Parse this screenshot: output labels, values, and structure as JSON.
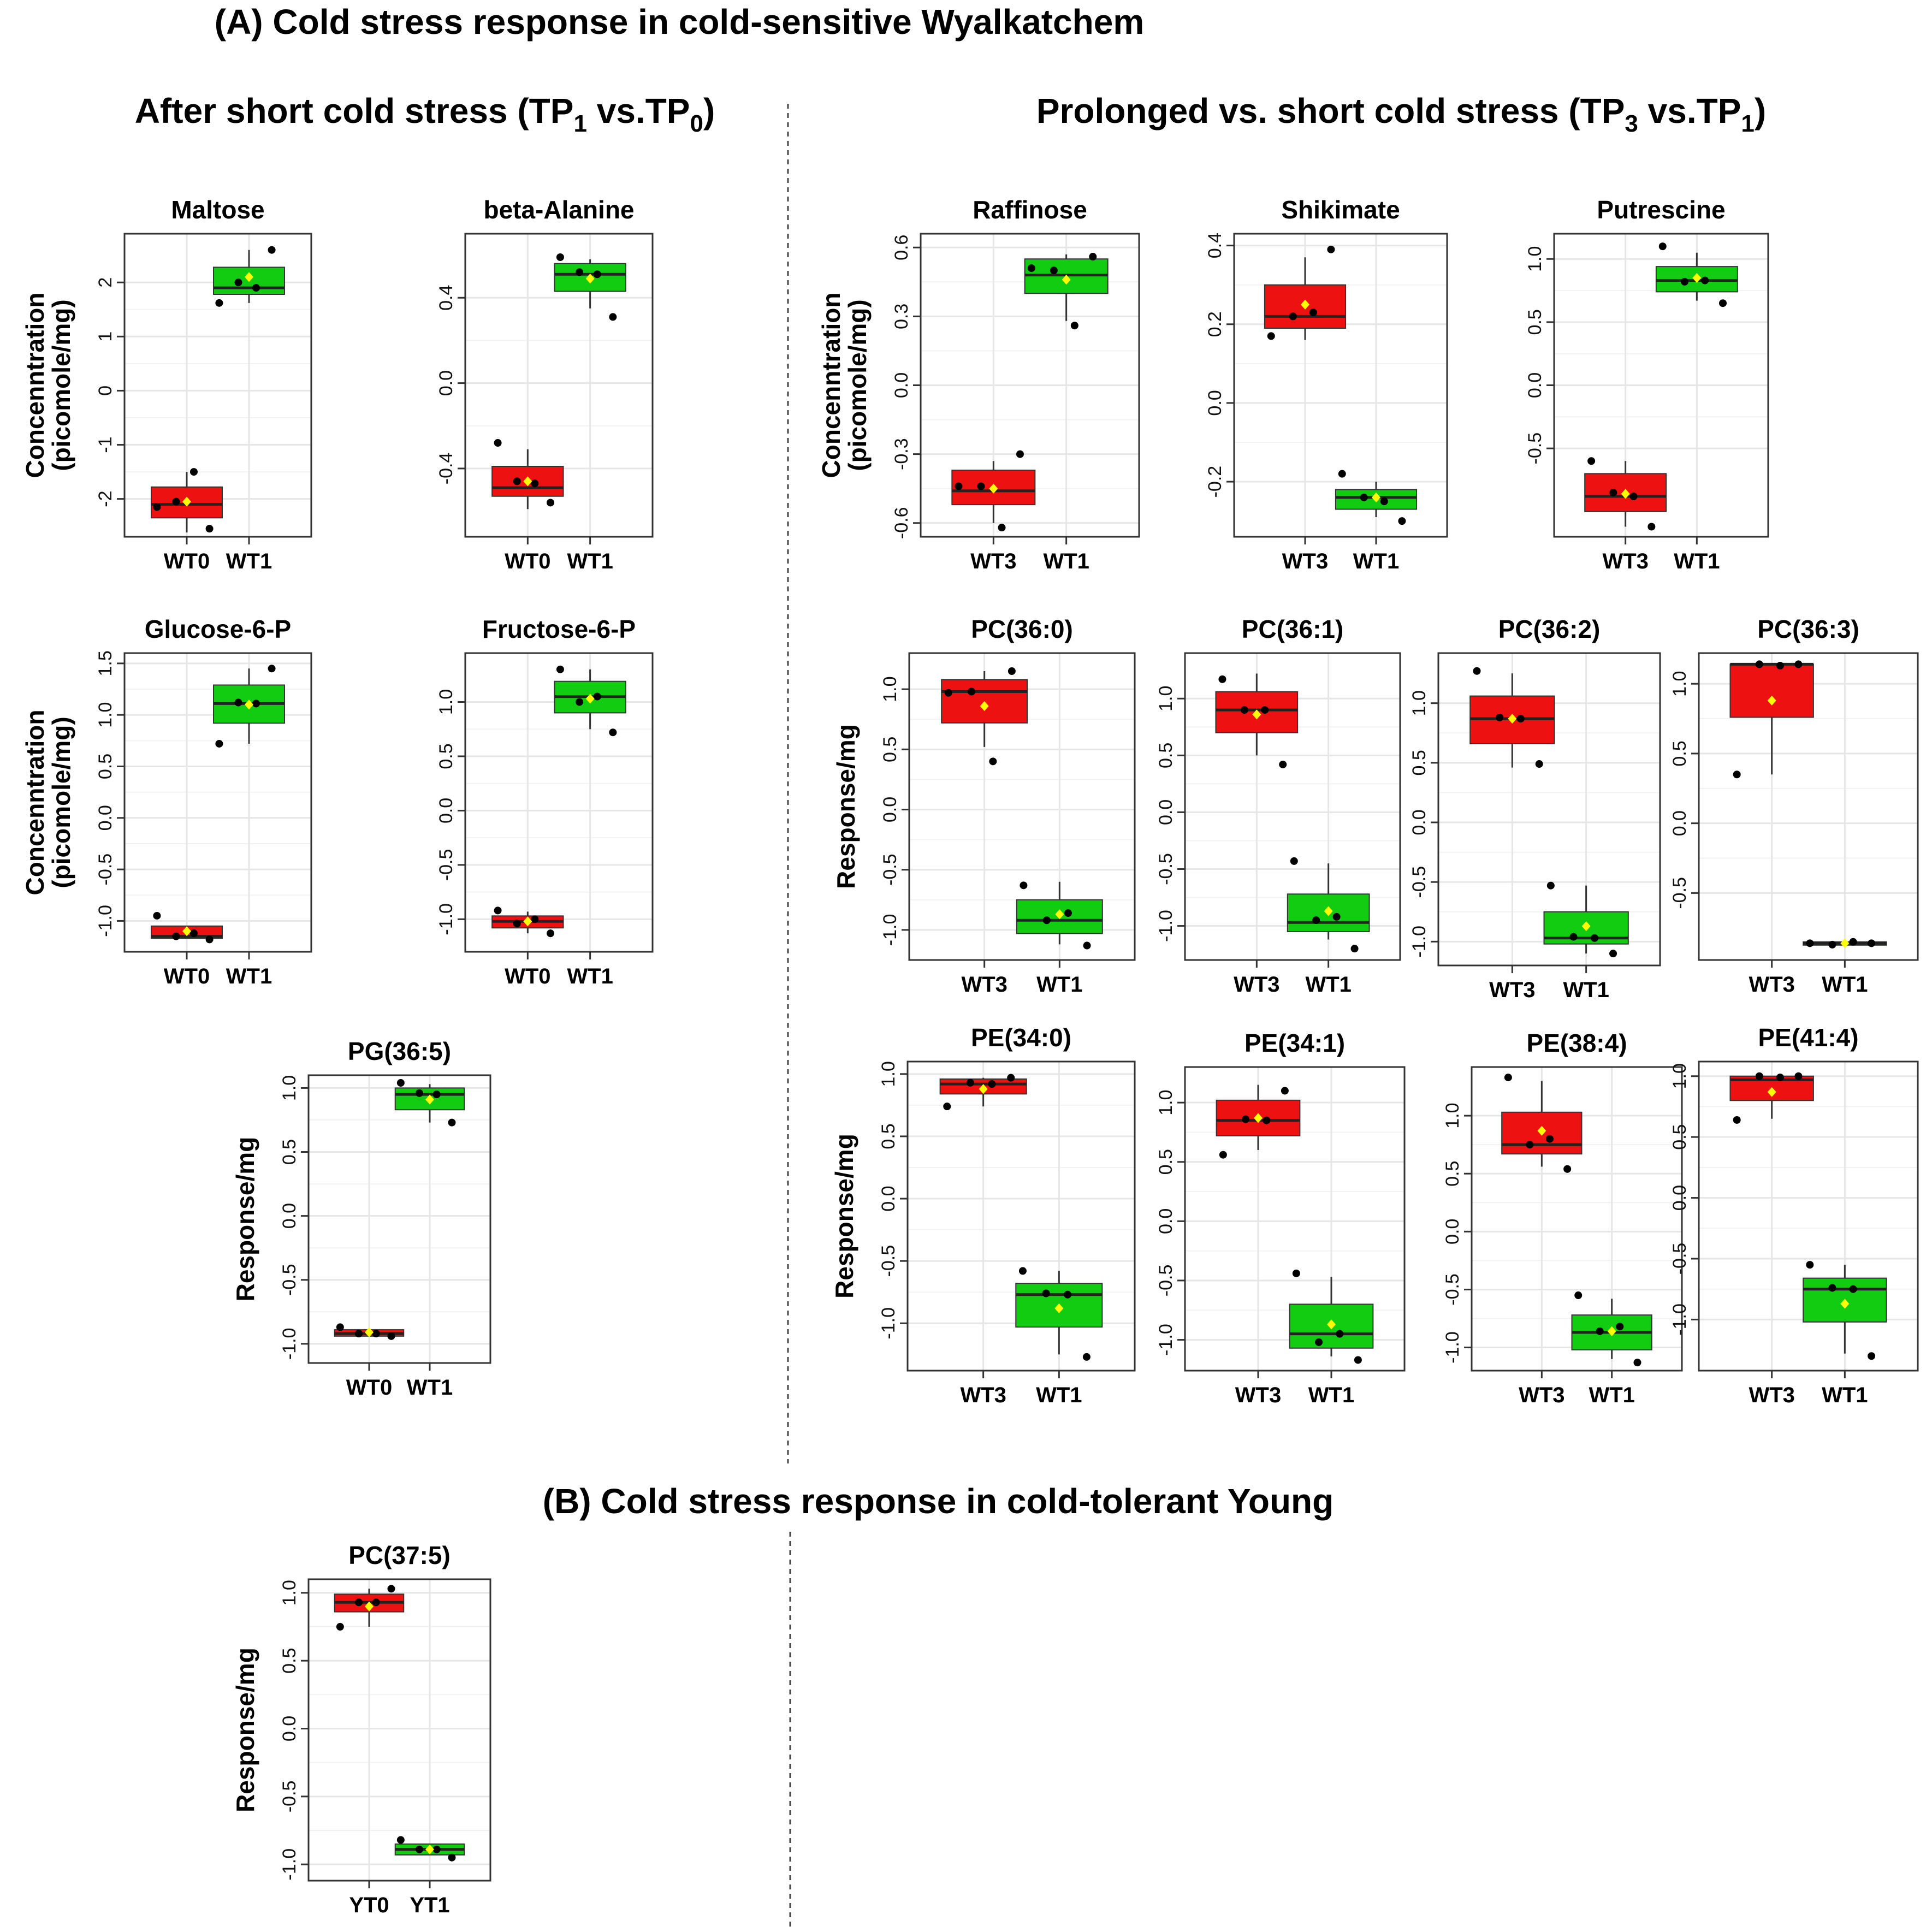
{
  "figure": {
    "title_a": "(A) Cold stress response in cold-sensitive Wyalkatchem",
    "title_b": "(B) Cold stress response in cold-tolerant Young",
    "subtitle_left_main": "After short cold stress (TP",
    "subtitle_left_sub1": "1",
    "subtitle_left_mid": " vs.TP",
    "subtitle_left_sub2": "0",
    "subtitle_left_end": ")",
    "subtitle_right_main": "Prolonged vs. short cold stress (TP",
    "subtitle_right_sub1": "3",
    "subtitle_right_mid": " vs.TP",
    "subtitle_right_sub2": "1",
    "subtitle_right_end": ")",
    "colors": {
      "red": "#ee1111",
      "green": "#11cc11",
      "mean": "#ffff00",
      "grid": "#e6e6e6"
    }
  },
  "chart_data": [
    {
      "type": "box",
      "title": "Maltose",
      "ylabel": [
        "Concenntration",
        "(picomole/mg)"
      ],
      "ylim": [
        -2.7,
        2.9
      ],
      "yticks": [
        -2,
        -1,
        0,
        1,
        2
      ],
      "categories": [
        "WT0",
        "WT1"
      ],
      "boxes": [
        {
          "q1": -2.35,
          "median": -2.1,
          "q3": -1.78,
          "wlo": -2.62,
          "whi": -1.5,
          "mean": -2.05,
          "color": "red",
          "points": [
            -2.15,
            -2.55,
            -1.5,
            -2.05
          ]
        },
        {
          "q1": 1.78,
          "median": 1.9,
          "q3": 2.28,
          "wlo": 1.62,
          "whi": 2.6,
          "mean": 2.1,
          "color": "green",
          "points": [
            1.62,
            2.6,
            1.9,
            2.0
          ]
        }
      ]
    },
    {
      "type": "box",
      "title": "beta-Alanine",
      "ylabel": [],
      "ylim": [
        -0.72,
        0.7
      ],
      "yticks": [
        -0.4,
        0,
        0.4
      ],
      "categories": [
        "WT0",
        "WT1"
      ],
      "boxes": [
        {
          "q1": -0.53,
          "median": -0.49,
          "q3": -0.39,
          "wlo": -0.59,
          "whi": -0.31,
          "mean": -0.46,
          "color": "red",
          "points": [
            -0.28,
            -0.56,
            -0.47,
            -0.46
          ]
        },
        {
          "q1": 0.43,
          "median": 0.51,
          "q3": 0.56,
          "wlo": 0.35,
          "whi": 0.58,
          "mean": 0.49,
          "color": "green",
          "points": [
            0.59,
            0.31,
            0.51,
            0.52
          ]
        }
      ]
    },
    {
      "type": "box",
      "title": "Raffinose",
      "ylabel": [
        "Concenntration",
        "(picomole/mg)"
      ],
      "ylim": [
        -0.66,
        0.66
      ],
      "yticks": [
        -0.6,
        -0.3,
        0,
        0.3,
        0.6
      ],
      "categories": [
        "WT3",
        "WT1"
      ],
      "boxes": [
        {
          "q1": -0.52,
          "median": -0.46,
          "q3": -0.37,
          "wlo": -0.6,
          "whi": -0.33,
          "mean": -0.45,
          "color": "red",
          "points": [
            -0.44,
            -0.3,
            -0.62,
            -0.44
          ]
        },
        {
          "q1": 0.4,
          "median": 0.48,
          "q3": 0.55,
          "wlo": 0.28,
          "whi": 0.57,
          "mean": 0.46,
          "color": "green",
          "points": [
            0.51,
            0.56,
            0.26,
            0.5
          ]
        }
      ]
    },
    {
      "type": "box",
      "title": "Shikimate",
      "ylabel": [],
      "ylim": [
        -0.34,
        0.43
      ],
      "yticks": [
        -0.2,
        0,
        0.2,
        0.4
      ],
      "categories": [
        "WT3",
        "WT1"
      ],
      "boxes": [
        {
          "q1": 0.19,
          "median": 0.22,
          "q3": 0.3,
          "wlo": 0.16,
          "whi": 0.37,
          "mean": 0.25,
          "color": "red",
          "points": [
            0.17,
            0.39,
            0.23,
            0.22
          ]
        },
        {
          "q1": -0.27,
          "median": -0.24,
          "q3": -0.22,
          "wlo": -0.29,
          "whi": -0.2,
          "mean": -0.24,
          "color": "green",
          "points": [
            -0.18,
            -0.3,
            -0.25,
            -0.24
          ]
        }
      ]
    },
    {
      "type": "box",
      "title": "Putrescine",
      "ylabel": [],
      "ylim": [
        -1.2,
        1.2
      ],
      "yticks": [
        -0.5,
        0,
        0.5,
        1.0
      ],
      "categories": [
        "WT3",
        "WT1"
      ],
      "boxes": [
        {
          "q1": -1.0,
          "median": -0.88,
          "q3": -0.7,
          "wlo": -1.12,
          "whi": -0.6,
          "mean": -0.86,
          "color": "red",
          "points": [
            -0.6,
            -1.12,
            -0.88,
            -0.85
          ]
        },
        {
          "q1": 0.74,
          "median": 0.83,
          "q3": 0.94,
          "wlo": 0.67,
          "whi": 1.05,
          "mean": 0.85,
          "color": "green",
          "points": [
            1.1,
            0.65,
            0.83,
            0.82
          ]
        }
      ]
    },
    {
      "type": "box",
      "title": "Glucose-6-P",
      "ylabel": [
        "Concenntration",
        "(picomole/mg)"
      ],
      "ylim": [
        -1.3,
        1.6
      ],
      "yticks": [
        -1.0,
        -0.5,
        0,
        0.5,
        1.0,
        1.5
      ],
      "categories": [
        "WT0",
        "WT1"
      ],
      "boxes": [
        {
          "q1": -1.17,
          "median": -1.15,
          "q3": -1.05,
          "wlo": -1.17,
          "whi": -1.05,
          "mean": -1.1,
          "color": "red",
          "points": [
            -0.95,
            -1.18,
            -1.12,
            -1.15
          ]
        },
        {
          "q1": 0.92,
          "median": 1.11,
          "q3": 1.29,
          "wlo": 0.72,
          "whi": 1.45,
          "mean": 1.1,
          "color": "green",
          "points": [
            0.72,
            1.45,
            1.11,
            1.12
          ]
        }
      ]
    },
    {
      "type": "box",
      "title": "Fructose-6-P",
      "ylabel": [],
      "ylim": [
        -1.3,
        1.45
      ],
      "yticks": [
        -1.0,
        -0.5,
        0,
        0.5,
        1.0
      ],
      "categories": [
        "WT0",
        "WT1"
      ],
      "boxes": [
        {
          "q1": -1.08,
          "median": -1.02,
          "q3": -0.97,
          "wlo": -1.13,
          "whi": -0.93,
          "mean": -1.02,
          "color": "red",
          "points": [
            -0.92,
            -1.13,
            -1.0,
            -1.04
          ]
        },
        {
          "q1": 0.9,
          "median": 1.05,
          "q3": 1.19,
          "wlo": 0.75,
          "whi": 1.3,
          "mean": 1.03,
          "color": "green",
          "points": [
            1.3,
            0.72,
            1.05,
            1.0
          ]
        }
      ]
    },
    {
      "type": "box",
      "title": "PC(36:0)",
      "ylabel": [
        "Response/mg"
      ],
      "ylim": [
        -1.25,
        1.3
      ],
      "yticks": [
        -1.0,
        -0.5,
        0,
        0.5,
        1.0
      ],
      "categories": [
        "WT3",
        "WT1"
      ],
      "boxes": [
        {
          "q1": 0.72,
          "median": 0.98,
          "q3": 1.08,
          "wlo": 0.52,
          "whi": 1.15,
          "mean": 0.86,
          "color": "red",
          "points": [
            0.97,
            1.15,
            0.4,
            0.98
          ]
        },
        {
          "q1": -1.03,
          "median": -0.92,
          "q3": -0.75,
          "wlo": -1.12,
          "whi": -0.6,
          "mean": -0.87,
          "color": "green",
          "points": [
            -0.63,
            -1.13,
            -0.86,
            -0.92
          ]
        }
      ]
    },
    {
      "type": "box",
      "title": "PC(36:1)",
      "ylabel": [],
      "ylim": [
        -1.3,
        1.4
      ],
      "yticks": [
        -1.0,
        -0.5,
        0,
        0.5,
        1.0
      ],
      "categories": [
        "WT3",
        "WT1"
      ],
      "boxes": [
        {
          "q1": 0.7,
          "median": 0.9,
          "q3": 1.06,
          "wlo": 0.5,
          "whi": 1.22,
          "mean": 0.86,
          "color": "red",
          "points": [
            1.17,
            0.42,
            0.9,
            0.9
          ]
        },
        {
          "q1": -1.05,
          "median": -0.97,
          "q3": -0.72,
          "wlo": -1.12,
          "whi": -0.45,
          "mean": -0.87,
          "color": "green",
          "points": [
            -0.43,
            -1.2,
            -0.92,
            -0.95
          ]
        }
      ]
    },
    {
      "type": "box",
      "title": "PC(36:2)",
      "ylabel": [],
      "ylim": [
        -1.2,
        1.42
      ],
      "yticks": [
        -1.0,
        -0.5,
        0,
        0.5,
        1.0
      ],
      "categories": [
        "WT3",
        "WT1"
      ],
      "boxes": [
        {
          "q1": 0.66,
          "median": 0.87,
          "q3": 1.06,
          "wlo": 0.46,
          "whi": 1.25,
          "mean": 0.87,
          "color": "red",
          "points": [
            1.27,
            0.49,
            0.87,
            0.88
          ]
        },
        {
          "q1": -1.02,
          "median": -0.97,
          "q3": -0.75,
          "wlo": -1.1,
          "whi": -0.53,
          "mean": -0.87,
          "color": "green",
          "points": [
            -0.53,
            -1.1,
            -0.97,
            -0.96
          ]
        }
      ]
    },
    {
      "type": "box",
      "title": "PC(36:3)",
      "ylabel": [],
      "ylim": [
        -0.98,
        1.22
      ],
      "yticks": [
        -0.5,
        0,
        0.5,
        1.0
      ],
      "categories": [
        "WT3",
        "WT1"
      ],
      "boxes": [
        {
          "q1": 0.76,
          "median": 1.14,
          "q3": 1.14,
          "wlo": 0.35,
          "whi": 1.14,
          "mean": 0.88,
          "color": "red",
          "points": [
            0.35,
            1.14,
            1.13,
            1.14
          ]
        },
        {
          "q1": -0.87,
          "median": -0.86,
          "q3": -0.85,
          "wlo": -0.87,
          "whi": -0.85,
          "mean": -0.86,
          "color": "green",
          "points": [
            -0.86,
            -0.86,
            -0.85,
            -0.87
          ]
        }
      ]
    },
    {
      "type": "box",
      "title": "PG(36:5)",
      "ylabel": [
        "Response/mg"
      ],
      "ylim": [
        -1.15,
        1.1
      ],
      "yticks": [
        -1.0,
        -0.5,
        0,
        0.5,
        1.0
      ],
      "categories": [
        "WT0",
        "WT1"
      ],
      "boxes": [
        {
          "q1": -0.94,
          "median": -0.92,
          "q3": -0.89,
          "wlo": -0.94,
          "whi": -0.89,
          "mean": -0.91,
          "color": "red",
          "points": [
            -0.87,
            -0.94,
            -0.92,
            -0.92
          ]
        },
        {
          "q1": 0.83,
          "median": 0.95,
          "q3": 1.0,
          "wlo": 0.73,
          "whi": 1.03,
          "mean": 0.91,
          "color": "green",
          "points": [
            1.04,
            0.73,
            0.95,
            0.96
          ]
        }
      ]
    },
    {
      "type": "box",
      "title": "PE(34:0)",
      "ylabel": [
        "Response/mg"
      ],
      "ylim": [
        -1.38,
        1.1
      ],
      "yticks": [
        -1.0,
        -0.5,
        0,
        0.5,
        1.0
      ],
      "categories": [
        "WT3",
        "WT1"
      ],
      "boxes": [
        {
          "q1": 0.84,
          "median": 0.92,
          "q3": 0.96,
          "wlo": 0.74,
          "whi": 0.97,
          "mean": 0.88,
          "color": "red",
          "points": [
            0.74,
            0.97,
            0.92,
            0.93
          ]
        },
        {
          "q1": -1.03,
          "median": -0.77,
          "q3": -0.68,
          "wlo": -1.25,
          "whi": -0.58,
          "mean": -0.88,
          "color": "green",
          "points": [
            -0.58,
            -1.27,
            -0.77,
            -0.76
          ]
        }
      ]
    },
    {
      "type": "box",
      "title": "PE(34:1)",
      "ylabel": [],
      "ylim": [
        -1.26,
        1.3
      ],
      "yticks": [
        -1.0,
        -0.5,
        0,
        0.5,
        1.0
      ],
      "categories": [
        "WT3",
        "WT1"
      ],
      "boxes": [
        {
          "q1": 0.72,
          "median": 0.85,
          "q3": 1.02,
          "wlo": 0.6,
          "whi": 1.15,
          "mean": 0.87,
          "color": "red",
          "points": [
            0.56,
            1.1,
            0.85,
            0.86
          ]
        },
        {
          "q1": -1.07,
          "median": -0.95,
          "q3": -0.7,
          "wlo": -1.14,
          "whi": -0.47,
          "mean": -0.87,
          "color": "green",
          "points": [
            -0.44,
            -1.17,
            -0.95,
            -1.02
          ]
        }
      ]
    },
    {
      "type": "box",
      "title": "PE(38:4)",
      "ylabel": [],
      "ylim": [
        -1.2,
        1.42
      ],
      "yticks": [
        -1.0,
        -0.5,
        0,
        0.5,
        1.0
      ],
      "categories": [
        "WT3",
        "WT1"
      ],
      "boxes": [
        {
          "q1": 0.67,
          "median": 0.75,
          "q3": 1.03,
          "wlo": 0.56,
          "whi": 1.3,
          "mean": 0.87,
          "color": "red",
          "points": [
            1.33,
            0.54,
            0.8,
            0.75
          ]
        },
        {
          "q1": -1.02,
          "median": -0.87,
          "q3": -0.72,
          "wlo": -1.1,
          "whi": -0.58,
          "mean": -0.86,
          "color": "green",
          "points": [
            -0.55,
            -1.13,
            -0.82,
            -0.86
          ]
        }
      ]
    },
    {
      "type": "box",
      "title": "PE(41:4)",
      "ylabel": [],
      "ylim": [
        -1.42,
        1.12
      ],
      "yticks": [
        -1.0,
        -0.5,
        0,
        0.5,
        1.0
      ],
      "categories": [
        "WT3",
        "WT1"
      ],
      "boxes": [
        {
          "q1": 0.8,
          "median": 0.97,
          "q3": 1.0,
          "wlo": 0.65,
          "whi": 1.0,
          "mean": 0.87,
          "color": "red",
          "points": [
            0.64,
            1.0,
            0.99,
            1.0
          ]
        },
        {
          "q1": -1.02,
          "median": -0.75,
          "q3": -0.66,
          "wlo": -1.28,
          "whi": -0.55,
          "mean": -0.87,
          "color": "green",
          "points": [
            -0.55,
            -1.3,
            -0.75,
            -0.74
          ]
        }
      ]
    },
    {
      "type": "box",
      "title": "PC(37:5)",
      "ylabel": [
        "Response/mg"
      ],
      "ylim": [
        -1.12,
        1.1
      ],
      "yticks": [
        -1.0,
        -0.5,
        0,
        0.5,
        1.0
      ],
      "categories": [
        "YT0",
        "YT1"
      ],
      "boxes": [
        {
          "q1": 0.86,
          "median": 0.93,
          "q3": 0.99,
          "wlo": 0.75,
          "whi": 1.03,
          "mean": 0.9,
          "color": "red",
          "points": [
            0.75,
            1.03,
            0.93,
            0.93
          ]
        },
        {
          "q1": -0.93,
          "median": -0.89,
          "q3": -0.85,
          "wlo": -0.93,
          "whi": -0.85,
          "mean": -0.89,
          "color": "green",
          "points": [
            -0.82,
            -0.95,
            -0.89,
            -0.89
          ]
        }
      ]
    }
  ]
}
